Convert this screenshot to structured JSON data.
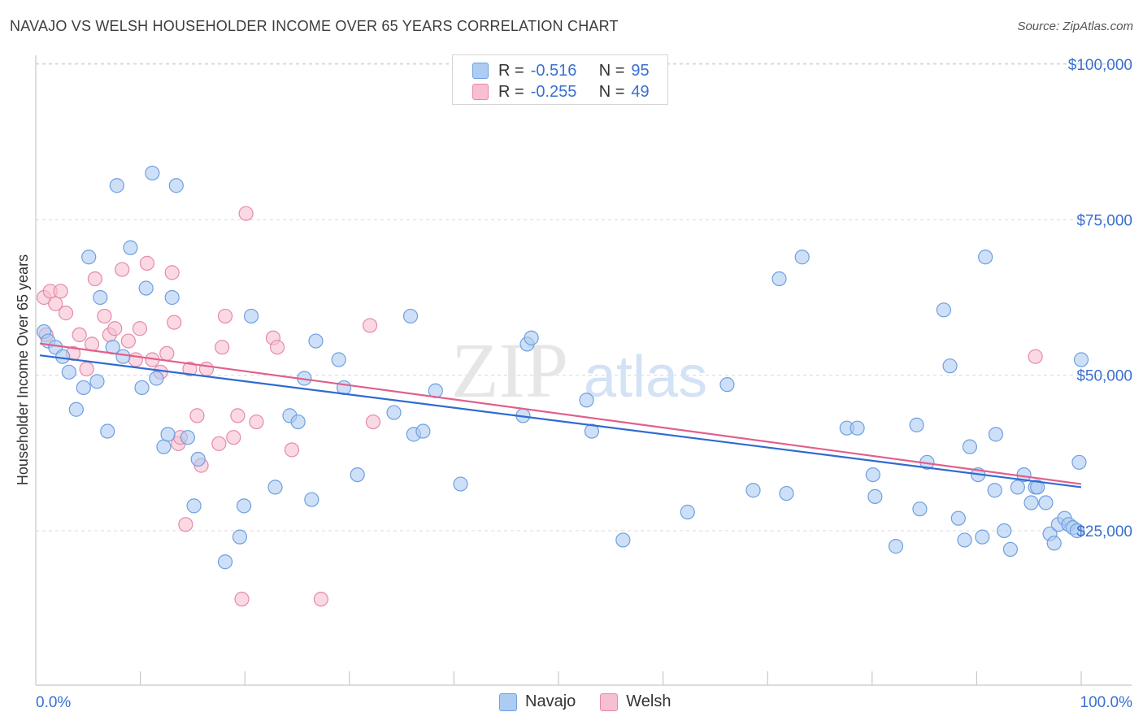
{
  "title": "NAVAJO VS WELSH HOUSEHOLDER INCOME OVER 65 YEARS CORRELATION CHART",
  "source": "Source: ZipAtlas.com",
  "watermark": {
    "zip": "ZIP",
    "atlas": "atlas"
  },
  "legend_top": [
    {
      "r_label": "R =",
      "r_value": "-0.516",
      "n_label": "N =",
      "n_value": "95"
    },
    {
      "r_label": "R =",
      "r_value": "-0.255",
      "n_label": "N =",
      "n_value": "49"
    }
  ],
  "colors": {
    "navajo_fill": "#aecbf2",
    "navajo_stroke": "#6f9fe0",
    "navajo_line": "#2f6bd1",
    "welsh_fill": "#f7bfd0",
    "welsh_stroke": "#e68aa8",
    "welsh_line": "#e0608c",
    "axis_text": "#3a6fd0",
    "grid": "#d9d9d9"
  },
  "chart_data": {
    "type": "scatter",
    "title": "NAVAJO VS WELSH HOUSEHOLDER INCOME OVER 65 YEARS CORRELATION CHART",
    "xlabel": "",
    "ylabel": "Householder Income Over 65 years",
    "xlim": [
      0,
      100
    ],
    "ylim": [
      0,
      105000
    ],
    "x_tick_labels": [
      "0.0%",
      "100.0%"
    ],
    "y_ticks": [
      25000,
      50000,
      75000,
      100000
    ],
    "y_tick_labels": [
      "$25,000",
      "$50,000",
      "$75,000",
      "$100,000"
    ],
    "grid": true,
    "legend": "bottom-center",
    "series": [
      {
        "name": "Navajo",
        "trend": {
          "x0": 0,
          "y0": 53200,
          "x1": 100,
          "y1": 32000
        },
        "points": [
          [
            0.4,
            57000
          ],
          [
            0.8,
            55500
          ],
          [
            1.5,
            54500
          ],
          [
            2.2,
            53000
          ],
          [
            2.8,
            50500
          ],
          [
            3.5,
            44500
          ],
          [
            4.2,
            48000
          ],
          [
            4.7,
            69000
          ],
          [
            5.5,
            49000
          ],
          [
            5.8,
            62500
          ],
          [
            6.5,
            41000
          ],
          [
            7.0,
            54500
          ],
          [
            7.4,
            80500
          ],
          [
            8.0,
            53000
          ],
          [
            8.7,
            70500
          ],
          [
            9.8,
            48000
          ],
          [
            10.2,
            64000
          ],
          [
            10.8,
            82500
          ],
          [
            11.2,
            49500
          ],
          [
            11.9,
            38500
          ],
          [
            12.3,
            40500
          ],
          [
            12.7,
            62500
          ],
          [
            13.1,
            80500
          ],
          [
            14.2,
            40000
          ],
          [
            14.8,
            29000
          ],
          [
            15.2,
            36500
          ],
          [
            17.8,
            20000
          ],
          [
            19.2,
            24000
          ],
          [
            19.6,
            29000
          ],
          [
            20.3,
            59500
          ],
          [
            22.6,
            32000
          ],
          [
            24.0,
            43500
          ],
          [
            24.8,
            42500
          ],
          [
            25.4,
            49500
          ],
          [
            26.1,
            30000
          ],
          [
            26.5,
            55500
          ],
          [
            28.7,
            52500
          ],
          [
            29.2,
            48000
          ],
          [
            30.5,
            34000
          ],
          [
            34.0,
            44000
          ],
          [
            35.6,
            59500
          ],
          [
            35.9,
            40500
          ],
          [
            36.8,
            41000
          ],
          [
            38.0,
            47500
          ],
          [
            40.4,
            32500
          ],
          [
            46.4,
            43500
          ],
          [
            46.8,
            55000
          ],
          [
            47.2,
            56000
          ],
          [
            52.5,
            46000
          ],
          [
            53.0,
            41000
          ],
          [
            56.0,
            23500
          ],
          [
            62.2,
            28000
          ],
          [
            66.0,
            48500
          ],
          [
            68.5,
            31500
          ],
          [
            71.0,
            65500
          ],
          [
            71.7,
            31000
          ],
          [
            73.2,
            69000
          ],
          [
            77.5,
            41500
          ],
          [
            78.5,
            41500
          ],
          [
            80.0,
            34000
          ],
          [
            80.2,
            30500
          ],
          [
            82.2,
            22500
          ],
          [
            84.2,
            42000
          ],
          [
            84.5,
            28500
          ],
          [
            85.2,
            36000
          ],
          [
            86.8,
            60500
          ],
          [
            87.4,
            51500
          ],
          [
            88.2,
            27000
          ],
          [
            88.8,
            23500
          ],
          [
            89.3,
            38500
          ],
          [
            90.1,
            34000
          ],
          [
            90.5,
            24000
          ],
          [
            90.8,
            69000
          ],
          [
            91.8,
            40500
          ],
          [
            91.7,
            31500
          ],
          [
            92.6,
            25000
          ],
          [
            93.2,
            22000
          ],
          [
            93.9,
            32000
          ],
          [
            94.5,
            34000
          ],
          [
            95.2,
            29500
          ],
          [
            95.6,
            32000
          ],
          [
            95.8,
            32000
          ],
          [
            96.6,
            29500
          ],
          [
            97.0,
            24500
          ],
          [
            97.4,
            23000
          ],
          [
            97.8,
            26000
          ],
          [
            98.4,
            27000
          ],
          [
            98.8,
            26000
          ],
          [
            99.2,
            25500
          ],
          [
            99.6,
            25000
          ],
          [
            99.8,
            36000
          ],
          [
            100.0,
            52500
          ]
        ]
      },
      {
        "name": "Welsh",
        "trend": {
          "x0": 0,
          "y0": 55100,
          "x1": 100,
          "y1": 32500
        },
        "points": [
          [
            0.4,
            62500
          ],
          [
            0.6,
            56500
          ],
          [
            1.0,
            63500
          ],
          [
            1.5,
            61500
          ],
          [
            2.0,
            63500
          ],
          [
            2.5,
            60000
          ],
          [
            3.2,
            53500
          ],
          [
            3.8,
            56500
          ],
          [
            4.5,
            51000
          ],
          [
            5.0,
            55000
          ],
          [
            5.3,
            65500
          ],
          [
            6.2,
            59500
          ],
          [
            6.7,
            56500
          ],
          [
            7.2,
            57500
          ],
          [
            7.9,
            67000
          ],
          [
            8.5,
            55500
          ],
          [
            9.2,
            52500
          ],
          [
            9.6,
            57500
          ],
          [
            10.3,
            68000
          ],
          [
            10.8,
            52500
          ],
          [
            11.6,
            50500
          ],
          [
            12.2,
            53500
          ],
          [
            12.7,
            66500
          ],
          [
            12.9,
            58500
          ],
          [
            13.3,
            39000
          ],
          [
            13.5,
            40000
          ],
          [
            14.0,
            26000
          ],
          [
            14.4,
            51000
          ],
          [
            15.1,
            43500
          ],
          [
            15.5,
            35500
          ],
          [
            16.0,
            51000
          ],
          [
            17.2,
            39000
          ],
          [
            17.5,
            54500
          ],
          [
            17.8,
            59500
          ],
          [
            18.6,
            40000
          ],
          [
            19.0,
            43500
          ],
          [
            19.4,
            14000
          ],
          [
            19.8,
            76000
          ],
          [
            20.8,
            42500
          ],
          [
            22.4,
            56000
          ],
          [
            22.8,
            54500
          ],
          [
            24.2,
            38000
          ],
          [
            27.0,
            14000
          ],
          [
            31.7,
            58000
          ],
          [
            32.0,
            42500
          ],
          [
            95.6,
            53000
          ]
        ]
      }
    ]
  }
}
